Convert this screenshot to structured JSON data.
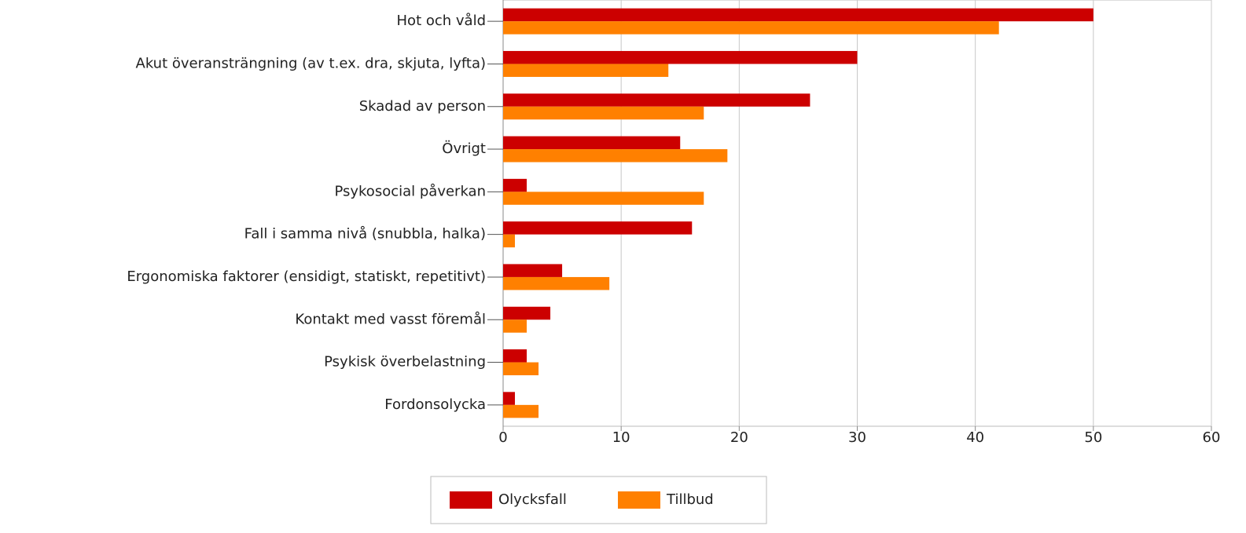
{
  "chart_data": {
    "type": "bar",
    "orientation": "horizontal",
    "categories": [
      "Hot och våld",
      "Akut överansträngning (av t.ex. dra, skjuta, lyfta)",
      "Skadad av person",
      "Övrigt",
      "Psykosocial påverkan",
      "Fall i samma nivå (snubbla, halka)",
      "Ergonomiska faktorer (ensidigt, statiskt, repetitivt)",
      "Kontakt med vasst föremål",
      "Psykisk överbelastning",
      "Fordonsolycka"
    ],
    "series": [
      {
        "name": "Olycksfall",
        "color": "#cc0000",
        "values": [
          50,
          30,
          26,
          15,
          2,
          16,
          5,
          4,
          2,
          1
        ]
      },
      {
        "name": "Tillbud",
        "color": "#ff8000",
        "values": [
          42,
          14,
          17,
          19,
          17,
          1,
          9,
          2,
          3,
          3
        ]
      }
    ],
    "xlim": [
      0,
      60
    ],
    "xticks": [
      0,
      10,
      20,
      30,
      40,
      50,
      60
    ],
    "grid": true,
    "legend": "bottom"
  }
}
